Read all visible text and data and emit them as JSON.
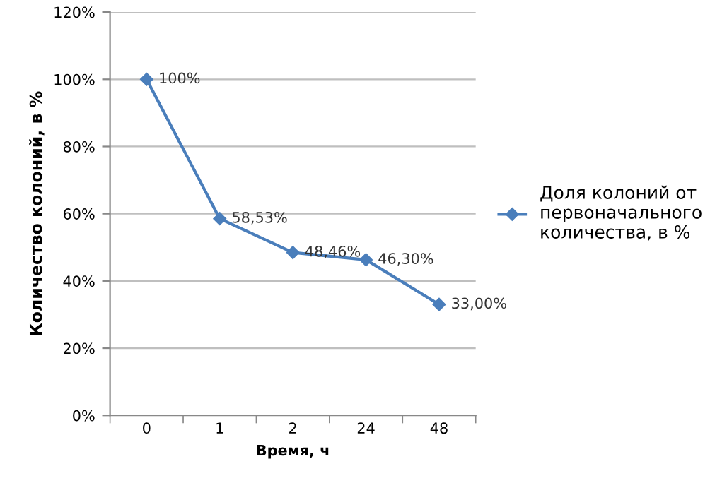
{
  "chart_data": {
    "type": "line",
    "xlabel": "Время, ч",
    "ylabel": "Количество колоний, в %",
    "categories": [
      "0",
      "1",
      "2",
      "24",
      "48"
    ],
    "series": [
      {
        "name": "Доля колоний от первоначального количества, в %",
        "color": "#4a7ebb",
        "values": [
          100,
          58.53,
          48.46,
          46.3,
          33.0
        ],
        "value_labels": [
          "100%",
          "58,53%",
          "48,46%",
          "46,30%",
          "33,00%"
        ]
      }
    ],
    "ylim": [
      0,
      120
    ],
    "yticks": [
      {
        "value": 0,
        "label": "0%"
      },
      {
        "value": 20,
        "label": "20%"
      },
      {
        "value": 40,
        "label": "40%"
      },
      {
        "value": 60,
        "label": "60%"
      },
      {
        "value": 80,
        "label": "80%"
      },
      {
        "value": 100,
        "label": "100%"
      },
      {
        "value": 120,
        "label": "120%"
      }
    ],
    "grid": "y",
    "legend": "right",
    "marker": "diamond",
    "line_style": "solid"
  }
}
